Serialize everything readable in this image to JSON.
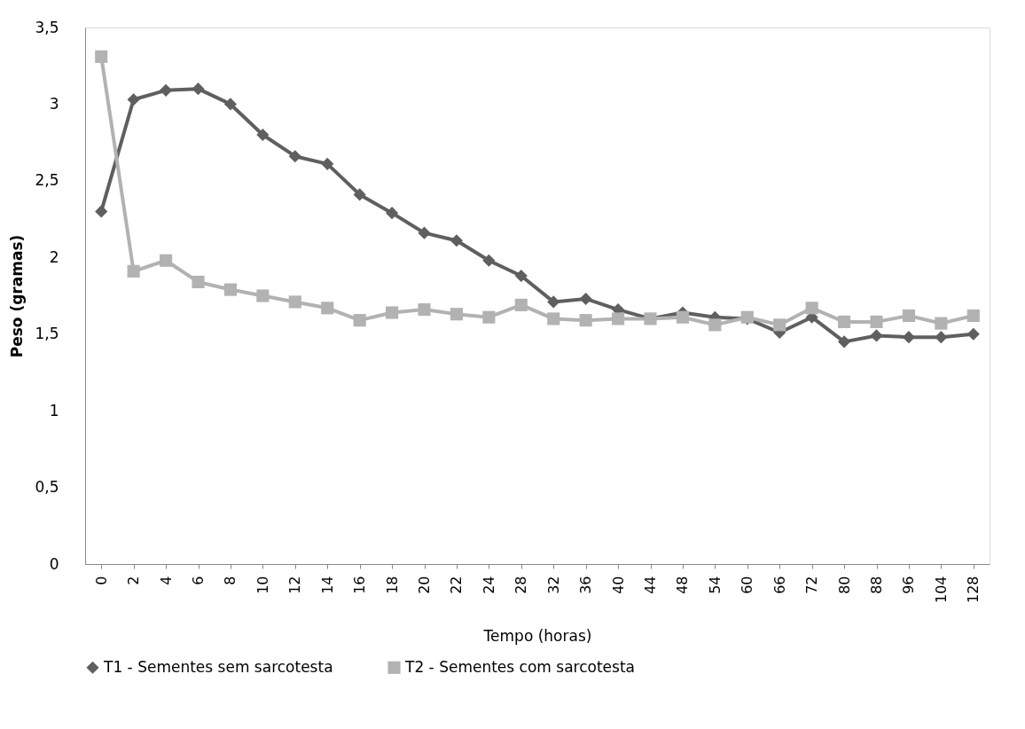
{
  "chart_data": {
    "type": "line",
    "xlabel": "Tempo (horas)",
    "ylabel": "Peso (gramas)",
    "categories": [
      "0",
      "2",
      "4",
      "6",
      "8",
      "10",
      "12",
      "14",
      "16",
      "18",
      "20",
      "22",
      "24",
      "28",
      "32",
      "36",
      "40",
      "44",
      "48",
      "54",
      "60",
      "66",
      "72",
      "80",
      "88",
      "96",
      "104",
      "128"
    ],
    "series": [
      {
        "name": "T1 - Sementes sem sarcotesta",
        "color": "#5f5f5f",
        "marker": "diamond",
        "values": [
          2.3,
          3.03,
          3.09,
          3.1,
          3.0,
          2.8,
          2.66,
          2.61,
          2.41,
          2.29,
          2.16,
          2.11,
          1.98,
          1.88,
          1.71,
          1.73,
          1.66,
          1.6,
          1.64,
          1.61,
          1.6,
          1.51,
          1.61,
          1.45,
          1.49,
          1.48,
          1.48,
          1.5
        ]
      },
      {
        "name": "T2 - Sementes com sarcotesta",
        "color": "#b2b2b2",
        "marker": "square",
        "values": [
          3.31,
          1.91,
          1.98,
          1.84,
          1.79,
          1.75,
          1.71,
          1.67,
          1.59,
          1.64,
          1.66,
          1.63,
          1.61,
          1.69,
          1.6,
          1.59,
          1.6,
          1.6,
          1.61,
          1.56,
          1.61,
          1.56,
          1.67,
          1.58,
          1.58,
          1.62,
          1.57,
          1.62
        ]
      }
    ],
    "ylim": [
      0,
      3.5
    ],
    "yticks": [
      0,
      {
        "value": 0.5,
        "label": "0,5"
      },
      1,
      {
        "value": 1.5,
        "label": "1,5"
      },
      2,
      {
        "value": 2.5,
        "label": "2,5"
      },
      3,
      {
        "value": 3.5,
        "label": "3,5"
      }
    ],
    "grid": false,
    "legend": "bottom",
    "line_style": "solid"
  }
}
